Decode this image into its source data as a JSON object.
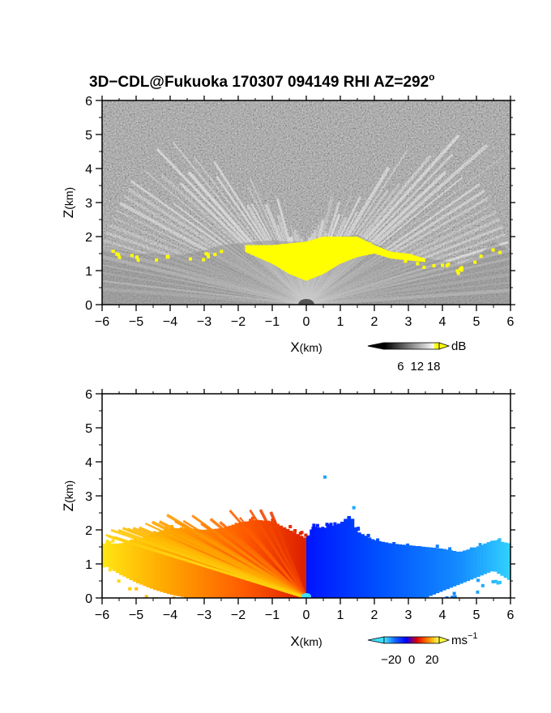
{
  "title": "3D−CDL@Fukuoka 170307 094149 RHI AZ=292",
  "title_degree": "o",
  "chart_data": [
    {
      "type": "heatmap",
      "name": "reflectivity-rhi",
      "xlabel_main": "X",
      "xlabel_unit": "(km)",
      "ylabel_main": "Z",
      "ylabel_unit": "(km)",
      "xlim": [
        -6,
        6
      ],
      "ylim": [
        0,
        6
      ],
      "xticks": [
        "−6",
        "−5",
        "−4",
        "−3",
        "−2",
        "−1",
        "0",
        "1",
        "2",
        "3",
        "4",
        "5",
        "6"
      ],
      "yticks": [
        "0",
        "1",
        "2",
        "3",
        "4",
        "5",
        "6"
      ],
      "background": "noise",
      "colorbar": {
        "unit": "dB",
        "ticks": [
          "6",
          "12",
          "18"
        ],
        "tick_values": [
          6,
          12,
          18
        ],
        "range": [
          0,
          20
        ],
        "colors": [
          "#000000",
          "#ffffff",
          "#ffff00"
        ]
      },
      "top_profile": [
        {
          "x": -6.0,
          "z": 1.7
        },
        {
          "x": -5.5,
          "z": 1.6
        },
        {
          "x": -5.0,
          "z": 1.5
        },
        {
          "x": -4.5,
          "z": 1.5
        },
        {
          "x": -4.0,
          "z": 1.45
        },
        {
          "x": -3.5,
          "z": 1.5
        },
        {
          "x": -3.0,
          "z": 1.6
        },
        {
          "x": -2.5,
          "z": 1.75
        },
        {
          "x": -2.0,
          "z": 1.8
        },
        {
          "x": -1.5,
          "z": 1.85
        },
        {
          "x": -1.0,
          "z": 1.9
        },
        {
          "x": -0.5,
          "z": 1.85
        },
        {
          "x": 0.0,
          "z": 1.85
        },
        {
          "x": 0.5,
          "z": 2.0
        },
        {
          "x": 1.0,
          "z": 2.0
        },
        {
          "x": 1.5,
          "z": 2.05
        },
        {
          "x": 2.0,
          "z": 1.8
        },
        {
          "x": 2.5,
          "z": 1.55
        },
        {
          "x": 3.0,
          "z": 1.5
        },
        {
          "x": 3.5,
          "z": 1.35
        },
        {
          "x": 4.0,
          "z": 1.3
        },
        {
          "x": 4.5,
          "z": 1.2
        },
        {
          "x": 5.0,
          "z": 1.4
        },
        {
          "x": 5.5,
          "z": 1.85
        },
        {
          "x": 6.0,
          "z": 1.6
        }
      ],
      "yellow_region": [
        {
          "x": -1.8,
          "z0": 1.55,
          "z1": 1.75
        },
        {
          "x": -1.0,
          "z0": 1.2,
          "z1": 1.75
        },
        {
          "x": -0.5,
          "z0": 0.9,
          "z1": 1.8
        },
        {
          "x": 0.0,
          "z0": 0.7,
          "z1": 1.85
        },
        {
          "x": 0.5,
          "z0": 0.9,
          "z1": 2.0
        },
        {
          "x": 1.0,
          "z0": 1.2,
          "z1": 2.0
        },
        {
          "x": 1.5,
          "z0": 1.4,
          "z1": 2.0
        },
        {
          "x": 2.0,
          "z0": 1.5,
          "z1": 1.75
        },
        {
          "x": 2.5,
          "z0": 1.35,
          "z1": 1.55
        },
        {
          "x": 3.0,
          "z0": 1.3,
          "z1": 1.5
        },
        {
          "x": 3.5,
          "z0": 1.25,
          "z1": 1.35
        }
      ]
    },
    {
      "type": "heatmap",
      "name": "doppler-velocity-rhi",
      "xlabel_main": "X",
      "xlabel_unit": "(km)",
      "ylabel_main": "Z",
      "ylabel_unit": "(km)",
      "xlim": [
        -6,
        6
      ],
      "ylim": [
        0,
        6
      ],
      "xticks": [
        "−6",
        "−5",
        "−4",
        "−3",
        "−2",
        "−1",
        "0",
        "1",
        "2",
        "3",
        "4",
        "5",
        "6"
      ],
      "yticks": [
        "0",
        "1",
        "2",
        "3",
        "4",
        "5",
        "6"
      ],
      "colorbar": {
        "unit_main": "ms",
        "unit_exp": "−1",
        "ticks": [
          "−20",
          "0",
          "20"
        ],
        "tick_values": [
          -20,
          0,
          20
        ],
        "range": [
          -27,
          27
        ],
        "colors": [
          "#40e0ff",
          "#1060ff",
          "#0000ff",
          "#e00000",
          "#ff8000",
          "#ffff40"
        ]
      },
      "top_profile": [
        {
          "x": -6.0,
          "z": 1.6
        },
        {
          "x": -5.5,
          "z": 1.6
        },
        {
          "x": -5.0,
          "z": 1.7
        },
        {
          "x": -4.5,
          "z": 1.9
        },
        {
          "x": -4.0,
          "z": 2.05
        },
        {
          "x": -3.5,
          "z": 2.05
        },
        {
          "x": -3.0,
          "z": 2.0
        },
        {
          "x": -2.5,
          "z": 2.05
        },
        {
          "x": -2.0,
          "z": 2.2
        },
        {
          "x": -1.5,
          "z": 2.3
        },
        {
          "x": -1.0,
          "z": 2.25
        },
        {
          "x": -0.5,
          "z": 2.0
        },
        {
          "x": 0.0,
          "z": 1.75
        },
        {
          "x": 0.2,
          "z": 2.1
        },
        {
          "x": 0.5,
          "z": 2.05
        },
        {
          "x": 1.0,
          "z": 2.2
        },
        {
          "x": 1.3,
          "z": 2.45
        },
        {
          "x": 1.5,
          "z": 1.95
        },
        {
          "x": 2.0,
          "z": 1.7
        },
        {
          "x": 2.5,
          "z": 1.6
        },
        {
          "x": 3.0,
          "z": 1.55
        },
        {
          "x": 3.5,
          "z": 1.5
        },
        {
          "x": 4.0,
          "z": 1.45
        },
        {
          "x": 4.5,
          "z": 1.35
        },
        {
          "x": 5.0,
          "z": 1.5
        },
        {
          "x": 5.5,
          "z": 1.7
        },
        {
          "x": 6.0,
          "z": 1.6
        }
      ],
      "bottom_profile": [
        {
          "x": -6.0,
          "z": 1.0
        },
        {
          "x": -5.5,
          "z": 0.7
        },
        {
          "x": -5.0,
          "z": 0.45
        },
        {
          "x": -4.5,
          "z": 0.25
        },
        {
          "x": -4.0,
          "z": 0.1
        },
        {
          "x": -3.5,
          "z": 0.0
        },
        {
          "x": 3.5,
          "z": 0.0
        },
        {
          "x": 4.0,
          "z": 0.2
        },
        {
          "x": 4.5,
          "z": 0.4
        },
        {
          "x": 5.0,
          "z": 0.6
        },
        {
          "x": 5.5,
          "z": 0.8
        },
        {
          "x": 6.0,
          "z": 0.5
        }
      ],
      "isolated_points": [
        {
          "x": 0.5,
          "z": 3.6,
          "v": -18
        },
        {
          "x": 1.35,
          "z": 2.7,
          "v": -18
        }
      ]
    }
  ]
}
